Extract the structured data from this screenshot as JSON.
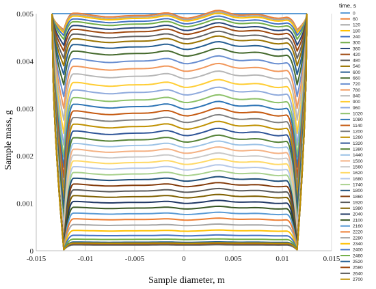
{
  "chart_data": {
    "type": "line",
    "xlabel": "Sample diameter, m",
    "ylabel": "Sample mass, g",
    "xlim": [
      -0.015,
      0.015
    ],
    "ylim": [
      0,
      0.005
    ],
    "x_ticks": [
      "-0.015",
      "-0.01",
      "-0.005",
      "0",
      "0.005",
      "0.01",
      "0.015"
    ],
    "y_ticks": [
      "0",
      "0.001",
      "0.002",
      "0.003",
      "0.004",
      "0.005"
    ],
    "grid": "vertical",
    "legend": {
      "title": "time, s",
      "placement": "right"
    },
    "series": [
      {
        "name": "0",
        "color": "#5B9BD5",
        "plateau": 0.005
      },
      {
        "name": "60",
        "color": "#ED7D31",
        "plateau": 0.00496
      },
      {
        "name": "120",
        "color": "#A5A5A5",
        "plateau": 0.00493
      },
      {
        "name": "180",
        "color": "#FFC000",
        "plateau": 0.0049
      },
      {
        "name": "240",
        "color": "#4472C4",
        "plateau": 0.00484
      },
      {
        "name": "300",
        "color": "#70AD47",
        "plateau": 0.00478
      },
      {
        "name": "360",
        "color": "#264478",
        "plateau": 0.0047
      },
      {
        "name": "420",
        "color": "#9E480E",
        "plateau": 0.00462
      },
      {
        "name": "480",
        "color": "#636363",
        "plateau": 0.00452
      },
      {
        "name": "540",
        "color": "#997300",
        "plateau": 0.00442
      },
      {
        "name": "600",
        "color": "#255E91",
        "plateau": 0.0043
      },
      {
        "name": "660",
        "color": "#43682B",
        "plateau": 0.00416
      },
      {
        "name": "720",
        "color": "#698ED0",
        "plateau": 0.004
      },
      {
        "name": "780",
        "color": "#F1975A",
        "plateau": 0.00384
      },
      {
        "name": "840",
        "color": "#B7B7B7",
        "plateau": 0.00368
      },
      {
        "name": "900",
        "color": "#FFCD33",
        "plateau": 0.0035
      },
      {
        "name": "960",
        "color": "#8FAADC",
        "plateau": 0.00334
      },
      {
        "name": "1020",
        "color": "#8CC168",
        "plateau": 0.00318
      },
      {
        "name": "1080",
        "color": "#2E75B6",
        "plateau": 0.00304
      },
      {
        "name": "1140",
        "color": "#C55A11",
        "plateau": 0.0029
      },
      {
        "name": "1200",
        "color": "#7F7F7F",
        "plateau": 0.00276
      },
      {
        "name": "1260",
        "color": "#BF9000",
        "plateau": 0.00262
      },
      {
        "name": "1320",
        "color": "#2F5597",
        "plateau": 0.00248
      },
      {
        "name": "1380",
        "color": "#548235",
        "plateau": 0.00234
      },
      {
        "name": "1440",
        "color": "#9DC3E6",
        "plateau": 0.00222
      },
      {
        "name": "1500",
        "color": "#F4B183",
        "plateau": 0.0021
      },
      {
        "name": "1560",
        "color": "#C9C9C9",
        "plateau": 0.00198
      },
      {
        "name": "1620",
        "color": "#FFD966",
        "plateau": 0.00186
      },
      {
        "name": "1680",
        "color": "#B4C7E7",
        "plateau": 0.00174
      },
      {
        "name": "1740",
        "color": "#A9D18E",
        "plateau": 0.00162
      },
      {
        "name": "1800",
        "color": "#1F4E79",
        "plateau": 0.0015
      },
      {
        "name": "1860",
        "color": "#843C0C",
        "plateau": 0.00138
      },
      {
        "name": "1920",
        "color": "#595959",
        "plateau": 0.00126
      },
      {
        "name": "1980",
        "color": "#7F6000",
        "plateau": 0.00114
      },
      {
        "name": "2040",
        "color": "#203864",
        "plateau": 0.00102
      },
      {
        "name": "2100",
        "color": "#385723",
        "plateau": 0.0009
      },
      {
        "name": "2160",
        "color": "#5B9BD5",
        "plateau": 0.00078
      },
      {
        "name": "2220",
        "color": "#ED7D31",
        "plateau": 0.00066
      },
      {
        "name": "2280",
        "color": "#A5A5A5",
        "plateau": 0.00054
      },
      {
        "name": "2340",
        "color": "#FFC000",
        "plateau": 0.00042
      },
      {
        "name": "2400",
        "color": "#4472C4",
        "plateau": 0.00032
      },
      {
        "name": "2460",
        "color": "#70AD47",
        "plateau": 0.00024
      },
      {
        "name": "2520",
        "color": "#255E91",
        "plateau": 0.00018
      },
      {
        "name": "2580",
        "color": "#9E480E",
        "plateau": 0.00014
      },
      {
        "name": "2640",
        "color": "#636363",
        "plateau": 0.00012
      },
      {
        "name": "2700",
        "color": "#BF8F00",
        "plateau": 0.00016
      }
    ]
  }
}
